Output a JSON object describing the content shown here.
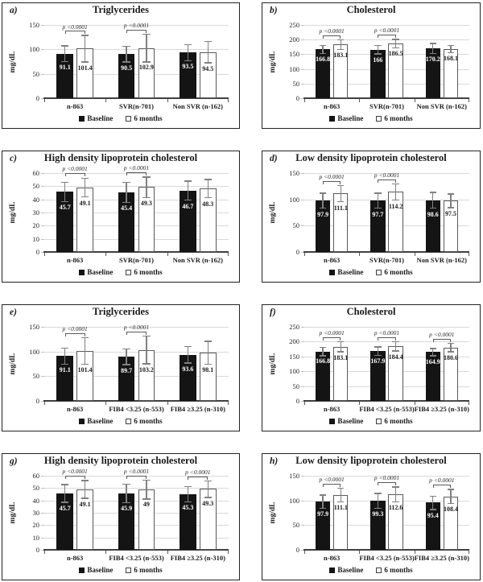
{
  "figure_meta": {
    "legend_baseline": "Baseline",
    "legend_six_months": "6 months",
    "p_label": "p <0.0001",
    "colors": {
      "bar_baseline": "#141414",
      "bar_six_months": "#ffffff",
      "bar_six_months_border": "#595959",
      "error_bar": "#808080",
      "gridline": "#d9d9d9",
      "axis": "#404040",
      "text": "#1a1a1a",
      "panel_border": "#222222"
    }
  },
  "chart_data": [
    {
      "id": "a",
      "letter": "a)",
      "type": "bar",
      "title": "Triglycerides",
      "ylabel": "mg/dL",
      "ylim": [
        0,
        150
      ],
      "yticks": [
        0,
        50,
        100,
        150
      ],
      "grid": true,
      "categories": [
        "n-863",
        "SVR(n-701)",
        "Non SVR (n-162)"
      ],
      "series": [
        {
          "name": "Baseline",
          "values": [
            91.1,
            90.5,
            93.5
          ],
          "errors": [
            17,
            17,
            17.5
          ]
        },
        {
          "name": "6 months",
          "values": [
            101.4,
            102.9,
            94.5
          ],
          "errors": [
            28,
            29,
            22.5
          ]
        }
      ],
      "p_values": [
        "p <0.0001",
        "p <0.0001",
        null
      ],
      "legend_position": "bottom"
    },
    {
      "id": "b",
      "letter": "b)",
      "type": "bar",
      "title": "Cholesterol",
      "ylabel": "mg/dL",
      "ylim": [
        0,
        250
      ],
      "yticks": [
        0,
        50,
        100,
        150,
        200,
        250
      ],
      "grid": true,
      "categories": [
        "n-863",
        "SVR(n-701)",
        "Non SVR (n-162)"
      ],
      "series": [
        {
          "name": "Baseline",
          "values": [
            166.8,
            166,
            170.2
          ],
          "errors": [
            15,
            16,
            18
          ]
        },
        {
          "name": "6 months",
          "values": [
            183.1,
            186.5,
            168.1
          ],
          "errors": [
            18,
            16,
            14
          ]
        }
      ],
      "p_values": [
        "p <0.0001",
        "p <0.0001",
        null
      ],
      "legend_position": "bottom"
    },
    {
      "id": "c",
      "letter": "c)",
      "type": "bar",
      "title": "High density lipoprotein cholesterol",
      "ylabel": "mg/dL",
      "ylim": [
        0,
        60
      ],
      "yticks": [
        0,
        10,
        20,
        30,
        40,
        50,
        60
      ],
      "grid": true,
      "categories": [
        "n-863",
        "SVR(n-701)",
        "Non SVR (n-162)"
      ],
      "series": [
        {
          "name": "Baseline",
          "values": [
            45.7,
            45.4,
            46.7
          ],
          "errors": [
            7.5,
            7.8,
            7.5
          ]
        },
        {
          "name": "6 months",
          "values": [
            49.1,
            49.3,
            48.3
          ],
          "errors": [
            7.5,
            8,
            7.2
          ]
        }
      ],
      "p_values": [
        "p <0.0001",
        "p <0.0001",
        null
      ],
      "legend_position": "bottom"
    },
    {
      "id": "d",
      "letter": "d)",
      "type": "bar",
      "title": "Low density lipoprotein cholesterol",
      "ylabel": "mg/dL",
      "ylim": [
        0,
        150
      ],
      "yticks": [
        0,
        50,
        100,
        150
      ],
      "grid": true,
      "categories": [
        "n-863",
        "SVR(n-701)",
        "Non SVR (n-162)"
      ],
      "series": [
        {
          "name": "Baseline",
          "values": [
            97.9,
            97.7,
            98.6
          ],
          "errors": [
            15,
            15,
            16
          ]
        },
        {
          "name": "6 months",
          "values": [
            111.1,
            114.2,
            97.5
          ],
          "errors": [
            16,
            16,
            14
          ]
        }
      ],
      "p_values": [
        "p <0.0001",
        "p <0.0001",
        null
      ],
      "legend_position": "bottom"
    },
    {
      "id": "e",
      "letter": "e)",
      "type": "bar",
      "title": "Triglycerides",
      "ylabel": "mg/dL",
      "ylim": [
        0,
        150
      ],
      "yticks": [
        0,
        50,
        100,
        150
      ],
      "grid": true,
      "categories": [
        "n-863",
        "FIB4 <3.25 (n-553)",
        "FIB4 ≥3.25 (n-310)"
      ],
      "series": [
        {
          "name": "Baseline",
          "values": [
            91.1,
            89.7,
            93.6
          ],
          "errors": [
            17,
            17,
            17.5
          ]
        },
        {
          "name": "6 months",
          "values": [
            101.4,
            103.2,
            98.1
          ],
          "errors": [
            28,
            29,
            24
          ]
        }
      ],
      "p_values": [
        "p <0.0001",
        "p <0.0001",
        null
      ],
      "legend_position": "bottom"
    },
    {
      "id": "f",
      "letter": "f)",
      "type": "bar",
      "title": "Cholesterol",
      "ylabel": "mg/dL",
      "ylim": [
        0,
        250
      ],
      "yticks": [
        0,
        50,
        100,
        150,
        200,
        250
      ],
      "grid": true,
      "categories": [
        "n-863",
        "FIB4 <3.25 (n-553)",
        "FIB4 ≥3.25 (n-310)"
      ],
      "series": [
        {
          "name": "Baseline",
          "values": [
            166.8,
            167.9,
            164.9
          ],
          "errors": [
            15,
            16,
            14
          ]
        },
        {
          "name": "6 months",
          "values": [
            183.1,
            184.4,
            180.6
          ],
          "errors": [
            18,
            17,
            16
          ]
        }
      ],
      "p_values": [
        "p <0.0001",
        "p <0.0001",
        "p <0.0001"
      ],
      "legend_position": "bottom"
    },
    {
      "id": "g",
      "letter": "g)",
      "type": "bar",
      "title": "High density lipoprotein cholesterol",
      "ylabel": "mg/dL",
      "ylim": [
        0,
        60
      ],
      "yticks": [
        0,
        10,
        20,
        30,
        40,
        50,
        60
      ],
      "grid": true,
      "categories": [
        "n-863",
        "FIB4 <3.25 (n-553)",
        "FIB4 ≥3.25 (n-310)"
      ],
      "series": [
        {
          "name": "Baseline",
          "values": [
            45.7,
            45.9,
            45.3
          ],
          "errors": [
            7.5,
            7.8,
            6.5
          ]
        },
        {
          "name": "6 months",
          "values": [
            49.1,
            49,
            49.3
          ],
          "errors": [
            7.5,
            8,
            7
          ]
        }
      ],
      "p_values": [
        "p <0.0001",
        "p <0.0001",
        "p <0.0001"
      ],
      "legend_position": "bottom"
    },
    {
      "id": "h",
      "letter": "h)",
      "type": "bar",
      "title": "Low density lipoprotein cholesterol",
      "ylabel": "mg/dL",
      "ylim": [
        0,
        150
      ],
      "yticks": [
        0,
        50,
        100,
        150
      ],
      "grid": true,
      "categories": [
        "n-863",
        "FIB4 <3.25 (n-553)",
        "FIB4 ≥3.25 (n-310)"
      ],
      "series": [
        {
          "name": "Baseline",
          "values": [
            97.9,
            99.3,
            95.4
          ],
          "errors": [
            14,
            16,
            14.5
          ]
        },
        {
          "name": "6 months",
          "values": [
            111.1,
            112.6,
            108.4
          ],
          "errors": [
            15,
            16,
            15
          ]
        }
      ],
      "p_values": [
        "p <0.0001",
        "p <0.0001",
        "p <0.0001"
      ],
      "legend_position": "bottom"
    }
  ]
}
